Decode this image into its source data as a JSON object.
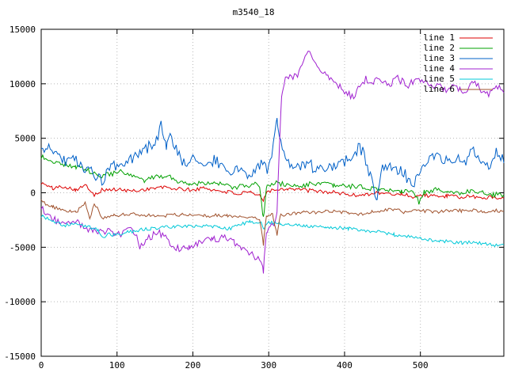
{
  "chart_data": {
    "type": "line",
    "title": "m3540_18",
    "xlim": [
      0,
      610
    ],
    "ylim": [
      -15000,
      15000
    ],
    "xticks": [
      0,
      100,
      200,
      300,
      400,
      500
    ],
    "yticks": [
      -15000,
      -10000,
      -5000,
      0,
      5000,
      10000,
      15000
    ],
    "grid": true,
    "legend_position": "top-right-inside",
    "colors": {
      "background": "#ffffff",
      "grid": "#b8b8b8",
      "border": "#000000",
      "text": "#000000"
    },
    "series": [
      {
        "name": "line 1",
        "color": "#dd0000",
        "noise": 180,
        "seed": 101,
        "anchors": [
          [
            0,
            900
          ],
          [
            15,
            400
          ],
          [
            30,
            600
          ],
          [
            45,
            300
          ],
          [
            60,
            650
          ],
          [
            70,
            -150
          ],
          [
            80,
            250
          ],
          [
            100,
            300
          ],
          [
            120,
            150
          ],
          [
            140,
            350
          ],
          [
            160,
            500
          ],
          [
            180,
            350
          ],
          [
            200,
            250
          ],
          [
            215,
            450
          ],
          [
            230,
            200
          ],
          [
            245,
            100
          ],
          [
            260,
            -100
          ],
          [
            275,
            0
          ],
          [
            288,
            -300
          ],
          [
            293,
            -700
          ],
          [
            297,
            150
          ],
          [
            310,
            300
          ],
          [
            325,
            400
          ],
          [
            340,
            300
          ],
          [
            355,
            200
          ],
          [
            370,
            100
          ],
          [
            385,
            50
          ],
          [
            400,
            -100
          ],
          [
            415,
            -250
          ],
          [
            430,
            -100
          ],
          [
            445,
            0
          ],
          [
            460,
            -150
          ],
          [
            475,
            -100
          ],
          [
            490,
            -350
          ],
          [
            505,
            -200
          ],
          [
            520,
            -350
          ],
          [
            535,
            -300
          ],
          [
            550,
            -400
          ],
          [
            565,
            -350
          ],
          [
            580,
            -450
          ],
          [
            595,
            -400
          ],
          [
            610,
            -500
          ]
        ]
      },
      {
        "name": "line 2",
        "color": "#00a000",
        "noise": 230,
        "seed": 202,
        "anchors": [
          [
            0,
            3300
          ],
          [
            15,
            2900
          ],
          [
            30,
            2600
          ],
          [
            45,
            2400
          ],
          [
            60,
            2100
          ],
          [
            75,
            1500
          ],
          [
            90,
            1700
          ],
          [
            105,
            1900
          ],
          [
            120,
            1500
          ],
          [
            135,
            1100
          ],
          [
            150,
            1400
          ],
          [
            165,
            1600
          ],
          [
            180,
            1100
          ],
          [
            195,
            800
          ],
          [
            210,
            900
          ],
          [
            225,
            1000
          ],
          [
            240,
            700
          ],
          [
            255,
            500
          ],
          [
            270,
            600
          ],
          [
            282,
            800
          ],
          [
            288,
            300
          ],
          [
            293,
            -2300
          ],
          [
            297,
            600
          ],
          [
            310,
            900
          ],
          [
            325,
            700
          ],
          [
            340,
            600
          ],
          [
            355,
            800
          ],
          [
            370,
            900
          ],
          [
            385,
            600
          ],
          [
            400,
            650
          ],
          [
            415,
            550
          ],
          [
            430,
            450
          ],
          [
            445,
            300
          ],
          [
            460,
            250
          ],
          [
            475,
            150
          ],
          [
            490,
            350
          ],
          [
            498,
            -900
          ],
          [
            505,
            100
          ],
          [
            520,
            250
          ],
          [
            535,
            50
          ],
          [
            550,
            0
          ],
          [
            565,
            150
          ],
          [
            580,
            100
          ],
          [
            595,
            -150
          ],
          [
            610,
            -250
          ]
        ]
      },
      {
        "name": "line 3",
        "color": "#0060c8",
        "noise": 550,
        "seed": 303,
        "anchors": [
          [
            0,
            3600
          ],
          [
            10,
            4300
          ],
          [
            20,
            3700
          ],
          [
            30,
            2900
          ],
          [
            40,
            3300
          ],
          [
            50,
            2600
          ],
          [
            60,
            2300
          ],
          [
            70,
            1500
          ],
          [
            80,
            1100
          ],
          [
            90,
            2100
          ],
          [
            100,
            2600
          ],
          [
            110,
            2300
          ],
          [
            120,
            3100
          ],
          [
            130,
            3600
          ],
          [
            140,
            4100
          ],
          [
            150,
            4700
          ],
          [
            158,
            6100
          ],
          [
            165,
            4200
          ],
          [
            172,
            5200
          ],
          [
            180,
            3400
          ],
          [
            190,
            2800
          ],
          [
            200,
            3200
          ],
          [
            210,
            2900
          ],
          [
            220,
            2500
          ],
          [
            230,
            3100
          ],
          [
            240,
            2100
          ],
          [
            250,
            1700
          ],
          [
            260,
            2300
          ],
          [
            270,
            1500
          ],
          [
            280,
            2100
          ],
          [
            290,
            2600
          ],
          [
            300,
            2200
          ],
          [
            306,
            4200
          ],
          [
            311,
            7000
          ],
          [
            316,
            4400
          ],
          [
            322,
            2700
          ],
          [
            330,
            2400
          ],
          [
            340,
            2100
          ],
          [
            350,
            2700
          ],
          [
            360,
            2300
          ],
          [
            370,
            2000
          ],
          [
            380,
            2500
          ],
          [
            390,
            2200
          ],
          [
            400,
            2900
          ],
          [
            410,
            3300
          ],
          [
            418,
            4200
          ],
          [
            426,
            3600
          ],
          [
            432,
            1900
          ],
          [
            438,
            500
          ],
          [
            443,
            -400
          ],
          [
            450,
            2400
          ],
          [
            460,
            2700
          ],
          [
            470,
            2100
          ],
          [
            480,
            1600
          ],
          [
            490,
            900
          ],
          [
            500,
            1900
          ],
          [
            510,
            2700
          ],
          [
            520,
            3600
          ],
          [
            530,
            3100
          ],
          [
            540,
            2600
          ],
          [
            550,
            3400
          ],
          [
            560,
            2900
          ],
          [
            570,
            3900
          ],
          [
            580,
            3100
          ],
          [
            590,
            2500
          ],
          [
            600,
            3600
          ],
          [
            610,
            3200
          ]
        ]
      },
      {
        "name": "line 4",
        "color": "#a020d0",
        "noise": 330,
        "seed": 404,
        "anchors": [
          [
            0,
            -1400
          ],
          [
            15,
            -2400
          ],
          [
            30,
            -2900
          ],
          [
            45,
            -2600
          ],
          [
            60,
            -3300
          ],
          [
            75,
            -3700
          ],
          [
            90,
            -3500
          ],
          [
            105,
            -3900
          ],
          [
            120,
            -3100
          ],
          [
            130,
            -4900
          ],
          [
            140,
            -4200
          ],
          [
            155,
            -3600
          ],
          [
            170,
            -4600
          ],
          [
            180,
            -5100
          ],
          [
            195,
            -4900
          ],
          [
            210,
            -4600
          ],
          [
            225,
            -4300
          ],
          [
            240,
            -4100
          ],
          [
            255,
            -4500
          ],
          [
            268,
            -5300
          ],
          [
            280,
            -5800
          ],
          [
            288,
            -6300
          ],
          [
            293,
            -7100
          ],
          [
            297,
            -3800
          ],
          [
            302,
            -2800
          ],
          [
            307,
            -3100
          ],
          [
            311,
            -1500
          ],
          [
            314,
            4000
          ],
          [
            317,
            8600
          ],
          [
            322,
            10300
          ],
          [
            330,
            10800
          ],
          [
            338,
            10500
          ],
          [
            346,
            12200
          ],
          [
            352,
            12900
          ],
          [
            358,
            12300
          ],
          [
            364,
            11600
          ],
          [
            372,
            11000
          ],
          [
            382,
            10300
          ],
          [
            392,
            9800
          ],
          [
            402,
            9300
          ],
          [
            412,
            8600
          ],
          [
            420,
            9900
          ],
          [
            428,
            10400
          ],
          [
            436,
            10100
          ],
          [
            444,
            10500
          ],
          [
            452,
            10200
          ],
          [
            460,
            9700
          ],
          [
            468,
            10600
          ],
          [
            476,
            10200
          ],
          [
            484,
            9900
          ],
          [
            492,
            10300
          ],
          [
            500,
            10400
          ],
          [
            508,
            10100
          ],
          [
            516,
            9700
          ],
          [
            524,
            10100
          ],
          [
            532,
            9400
          ],
          [
            540,
            9800
          ],
          [
            550,
            9600
          ],
          [
            560,
            9200
          ],
          [
            570,
            10100
          ],
          [
            580,
            9500
          ],
          [
            590,
            8900
          ],
          [
            600,
            9700
          ],
          [
            610,
            9300
          ]
        ]
      },
      {
        "name": "line 5",
        "color": "#00c8d8",
        "noise": 160,
        "seed": 505,
        "anchors": [
          [
            0,
            -2100
          ],
          [
            15,
            -2600
          ],
          [
            30,
            -3000
          ],
          [
            45,
            -2800
          ],
          [
            60,
            -3100
          ],
          [
            75,
            -3400
          ],
          [
            82,
            -4200
          ],
          [
            88,
            -3800
          ],
          [
            100,
            -3900
          ],
          [
            115,
            -3600
          ],
          [
            130,
            -3400
          ],
          [
            145,
            -3300
          ],
          [
            160,
            -3200
          ],
          [
            175,
            -3100
          ],
          [
            190,
            -3050
          ],
          [
            205,
            -3100
          ],
          [
            220,
            -3050
          ],
          [
            235,
            -3200
          ],
          [
            250,
            -3300
          ],
          [
            262,
            -2900
          ],
          [
            275,
            -2700
          ],
          [
            290,
            -2800
          ],
          [
            293,
            -3300
          ],
          [
            300,
            -2700
          ],
          [
            315,
            -2850
          ],
          [
            330,
            -2950
          ],
          [
            345,
            -3000
          ],
          [
            360,
            -3050
          ],
          [
            375,
            -3100
          ],
          [
            390,
            -3200
          ],
          [
            405,
            -3300
          ],
          [
            420,
            -3400
          ],
          [
            435,
            -3550
          ],
          [
            450,
            -3650
          ],
          [
            465,
            -3850
          ],
          [
            480,
            -4000
          ],
          [
            495,
            -4100
          ],
          [
            510,
            -4300
          ],
          [
            525,
            -4400
          ],
          [
            540,
            -4500
          ],
          [
            555,
            -4600
          ],
          [
            570,
            -4550
          ],
          [
            585,
            -4700
          ],
          [
            600,
            -4800
          ],
          [
            610,
            -4850
          ]
        ]
      },
      {
        "name": "line 6",
        "color": "#a0522d",
        "noise": 160,
        "seed": 606,
        "anchors": [
          [
            0,
            -800
          ],
          [
            15,
            -1300
          ],
          [
            30,
            -1600
          ],
          [
            45,
            -1800
          ],
          [
            58,
            -1000
          ],
          [
            64,
            -2400
          ],
          [
            70,
            -900
          ],
          [
            80,
            -2300
          ],
          [
            95,
            -2100
          ],
          [
            110,
            -2000
          ],
          [
            125,
            -1950
          ],
          [
            140,
            -2050
          ],
          [
            155,
            -2150
          ],
          [
            170,
            -2050
          ],
          [
            185,
            -2000
          ],
          [
            200,
            -2050
          ],
          [
            215,
            -2150
          ],
          [
            230,
            -2050
          ],
          [
            245,
            -2150
          ],
          [
            258,
            -2300
          ],
          [
            270,
            -2200
          ],
          [
            280,
            -2250
          ],
          [
            288,
            -2400
          ],
          [
            293,
            -4700
          ],
          [
            297,
            -2100
          ],
          [
            305,
            -2000
          ],
          [
            311,
            -3900
          ],
          [
            315,
            -2050
          ],
          [
            330,
            -1900
          ],
          [
            345,
            -1800
          ],
          [
            360,
            -1850
          ],
          [
            375,
            -1650
          ],
          [
            390,
            -1750
          ],
          [
            405,
            -1850
          ],
          [
            420,
            -1950
          ],
          [
            435,
            -1750
          ],
          [
            450,
            -1600
          ],
          [
            465,
            -1500
          ],
          [
            480,
            -1800
          ],
          [
            495,
            -1650
          ],
          [
            510,
            -1700
          ],
          [
            525,
            -1750
          ],
          [
            540,
            -1600
          ],
          [
            555,
            -1650
          ],
          [
            570,
            -1600
          ],
          [
            585,
            -1700
          ],
          [
            600,
            -1650
          ],
          [
            610,
            -1700
          ]
        ]
      }
    ]
  }
}
